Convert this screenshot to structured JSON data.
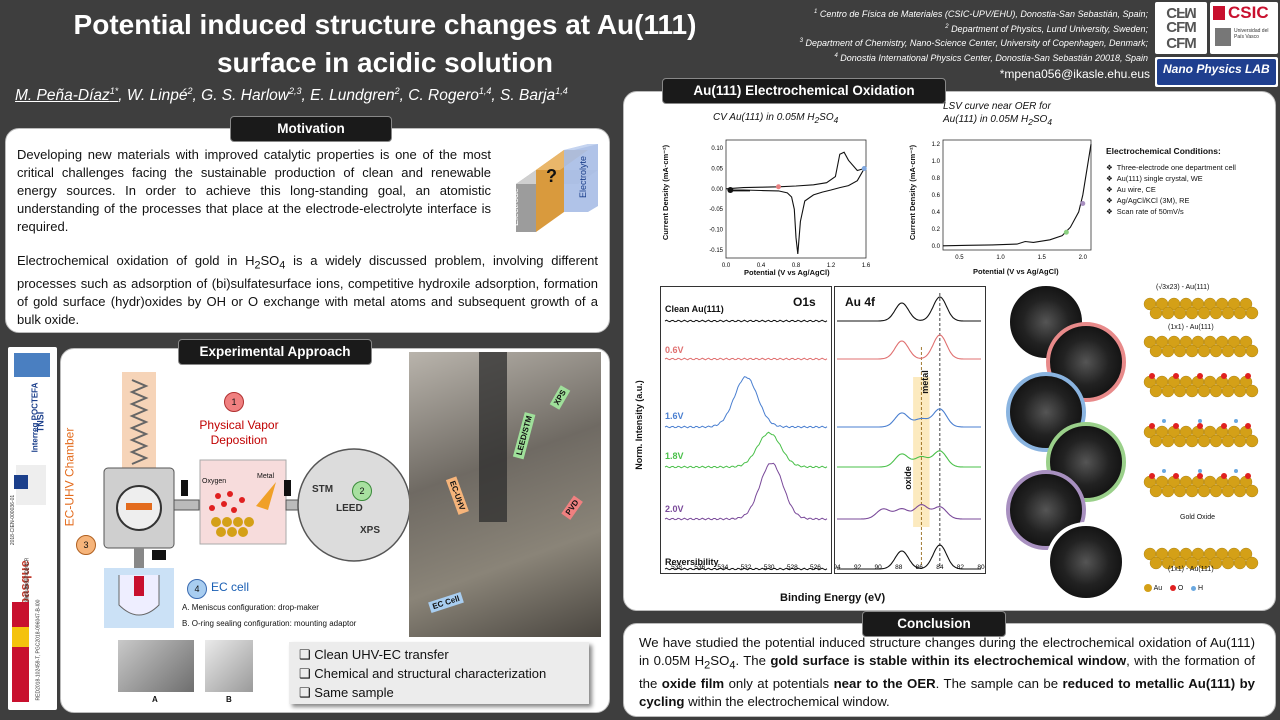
{
  "title": {
    "line1": "Potential induced structure changes at Au(111)",
    "line2": "surface in acidic solution"
  },
  "affiliations": [
    "Centro de Física de Materiales (CSIC-UPV/EHU), Donostia-San Sebastián, Spain;",
    "Department of Physics, Lund University, Sweden;",
    "Department of Chemistry, Nano-Science Center, University of Copenhagen, Denmark;",
    "Donostia International Physics Center, Donostia-San Sebastián 20018, Spain"
  ],
  "email": "*mpena056@ikasle.ehu.eus",
  "authors": {
    "a1": "M. Peña-Díaz",
    "a1s": "1*",
    "a2": "W. Linpé",
    "a2s": "2",
    "a3": "G. S. Harlow",
    "a3s": "2,3",
    "a4": "E. Lundgren",
    "a4s": "2",
    "a5": "C. Rogero",
    "a5s": "1,4",
    "a6": "S. Barja",
    "a6s": "1,4"
  },
  "logos": {
    "cfm": "CFM",
    "csic": "CSIC",
    "npl": "Nano Physics LAB",
    "ehu": "Universidad del País Vasco",
    "interreg": "Interreg POCTEFA",
    "tnsi": "TNSI",
    "ikerbasque": "ikerbasque",
    "ikerbasque_sub": "Basque Foundation for Science",
    "grant1": "2018-CIEN-000036-01",
    "grant2": "MAT2017-88377-C2-1-R",
    "grant3": "RED2018-102459-T, PGC2018-096047-B-I00"
  },
  "motivation": {
    "header": "Motivation",
    "p1": "Developing new materials with improved catalytic properties is one of the most critical challenges facing the sustainable production of clean and renewable energy sources. In order to achieve this long-standing goal, an atomistic understanding of the processes that place at the electrode-electrolyte interface is required.",
    "p2_a": "Electrochemical oxidation of gold in H",
    "p2_sub1": "2",
    "p2_b": "SO",
    "p2_sub2": "4",
    "p2_c": " is a widely discussed problem, involving different processes such as adsorption of (bi)sulfatesurface ions, competitive hydroxile adsorption, formation of gold surface (hydr)oxides by OH or O exchange with metal atoms and subsequent growth of a bulk oxide.",
    "cube_q": "?",
    "electrode": "Electrode",
    "electrolyte": "Electrolyte"
  },
  "experimental": {
    "header": "Experimental Approach",
    "chamber": "EC-UHV Chamber",
    "n1": "1",
    "pvd": "Physical Vapor Deposition",
    "n2": "2",
    "stm": "STM",
    "leed": "LEED",
    "xps": "XPS",
    "n3": "3",
    "n4": "4",
    "ec_cell": "EC cell",
    "cfg_a": "A. Meniscus configuration: drop-maker",
    "cfg_b": "B. O-ring sealing configuration: mounting adaptor",
    "oxygen": "Oxygen",
    "metal": "Metal",
    "photo_a": "A",
    "photo_b": "B",
    "photo_labels": {
      "xps": "XPS",
      "leed_stm": "LEED/STM",
      "ec_uhv": "EC-UHV",
      "pvd": "PVD",
      "ec_cell": "EC Cell"
    },
    "checks": [
      "Clean UHV-EC transfer",
      "Chemical and structural characterization",
      "Same sample"
    ]
  },
  "oxidation": {
    "header": "Au(111) Electrochemical Oxidation",
    "cv_title": "CV Au(111) in 0.05M H",
    "cv_title_sub": "2",
    "cv_title_b": "SO",
    "cv_title_sub2": "4",
    "lsv_title1": "LSV curve near OER  for",
    "lsv_title2a": "Au(111) in 0.05M H",
    "lsv_title2_sub": "2",
    "lsv_title2b": "SO",
    "lsv_title2_sub2": "4",
    "cv_ylabel": "Current Density (mA·cm⁻²)",
    "cv_xlabel": "Potential (V vs Ag/AgCl)",
    "lsv_ylabel": "Current Density (mA·cm⁻²)",
    "lsv_xlabel": "Potential (V vs Ag/AgCl)",
    "cond_title": "Electrochemical Conditions:",
    "conditions": [
      "Three-electrode   one department   cell",
      "Au(111) single crystal, WE",
      "Au wire,  CE",
      "Ag/AgCl/KCl  (3M), RE",
      "Scan rate of 50mV/s"
    ],
    "xps_o1s": "O1s",
    "xps_au4f": "Au 4f",
    "xps_ylabel": "Norm. Intensity (a.u.)",
    "xps_xlabel": "Binding Energy (eV)",
    "spectra_labels": [
      "Clean Au(111)",
      "0.6V",
      "1.6V",
      "1.8V",
      "2.0V",
      "Reversibility"
    ],
    "metal": "metal",
    "oxide": "oxide",
    "models": [
      "(√3x23) - Au(111)",
      "(1x1) - Au(111)",
      "Gold Oxide",
      "(1x1) - Au(111)"
    ],
    "legend": {
      "au": "Au",
      "o": "O",
      "h": "H"
    }
  },
  "conclusion": {
    "header": "Conclusion",
    "t1": "We have studied the potential induced structure changes during the electrochemical oxidation of Au(111) in 0.05M H",
    "t1_sub": "2",
    "t1_b": "SO",
    "t1_sub2": "4",
    "t1_c": ". The ",
    "b1": "gold surface is stable within its electrochemical window",
    "t2": ", with the formation of the ",
    "b2": "oxide film",
    "t3": " only at potentials ",
    "b3": "near to the OER",
    "t4": ". The sample can be ",
    "b4": "reduced to metallic Au(111) by cycling",
    "t5": " within the electrochemical window."
  },
  "chart_data": [
    {
      "type": "line",
      "title": "CV Au(111) in 0.05M H2SO4",
      "xlabel": "Potential (V vs Ag/AgCl)",
      "ylabel": "Current Density (mA·cm⁻²)",
      "xlim": [
        0.0,
        1.6
      ],
      "ylim": [
        -0.17,
        0.12
      ],
      "xticks": [
        0.0,
        0.4,
        0.8,
        1.2,
        1.6
      ],
      "yticks": [
        0.1,
        0.05,
        0.0,
        -0.05,
        -0.1,
        -0.15
      ],
      "x": [
        0.0,
        0.2,
        0.4,
        0.6,
        0.8,
        1.0,
        1.15,
        1.25,
        1.3,
        1.35,
        1.4,
        1.5,
        1.58,
        1.5,
        1.4,
        1.3,
        1.2,
        1.1,
        1.0,
        0.9,
        0.85,
        0.82,
        0.8,
        0.78,
        0.75,
        0.7,
        0.6,
        0.4,
        0.2,
        0.05
      ],
      "y": [
        0.0,
        0.003,
        0.004,
        0.005,
        0.007,
        0.01,
        0.015,
        0.03,
        0.085,
        0.09,
        0.07,
        0.045,
        0.05,
        0.02,
        0.008,
        0.003,
        -0.003,
        -0.008,
        -0.015,
        -0.03,
        -0.08,
        -0.16,
        -0.12,
        -0.05,
        -0.02,
        -0.01,
        -0.005,
        -0.004,
        -0.003,
        -0.003
      ]
    },
    {
      "type": "line",
      "title": "LSV curve near OER for Au(111) in 0.05M H2SO4",
      "xlabel": "Potential (V vs Ag/AgCl)",
      "ylabel": "Current Density (mA·cm⁻²)",
      "xlim": [
        0.3,
        2.1
      ],
      "ylim": [
        -0.05,
        1.25
      ],
      "xticks": [
        0.5,
        1.0,
        1.5,
        2.0
      ],
      "yticks": [
        1.2,
        1.0,
        0.8,
        0.6,
        0.4,
        0.2,
        0.0
      ],
      "x": [
        0.3,
        0.6,
        0.9,
        1.2,
        1.3,
        1.4,
        1.6,
        1.75,
        1.85,
        1.95,
        2.0,
        2.05,
        2.1
      ],
      "y": [
        0.0,
        0.005,
        0.01,
        0.02,
        0.05,
        0.04,
        0.07,
        0.12,
        0.22,
        0.4,
        0.6,
        0.9,
        1.2
      ]
    },
    {
      "type": "line",
      "title": "O1s",
      "xlabel": "Binding Energy (eV)",
      "xlim": [
        539,
        525
      ],
      "xticks": [
        538,
        536,
        534,
        532,
        530,
        528,
        526
      ],
      "series": [
        {
          "name": "Clean Au(111)",
          "peak": null
        },
        {
          "name": "0.6V",
          "peak": null
        },
        {
          "name": "1.6V",
          "peak": 532.0
        },
        {
          "name": "1.8V",
          "peak": 530.0
        },
        {
          "name": "2.0V",
          "peak": 529.8
        },
        {
          "name": "Reversibility",
          "peak": null
        }
      ]
    },
    {
      "type": "line",
      "title": "Au 4f",
      "xlabel": "Binding Energy (eV)",
      "xlim": [
        94,
        80
      ],
      "xticks": [
        94,
        92,
        90,
        88,
        86,
        84,
        82,
        80
      ],
      "series": [
        {
          "name": "Clean Au(111)",
          "peaks": [
            87.7,
            84.0
          ]
        },
        {
          "name": "0.6V",
          "peaks": [
            87.7,
            84.0
          ]
        },
        {
          "name": "1.6V",
          "peaks": [
            87.7,
            85.8,
            84.0
          ]
        },
        {
          "name": "1.8V",
          "peaks": [
            87.7,
            85.8,
            84.0
          ]
        },
        {
          "name": "2.0V",
          "peaks": [
            89.5,
            87.7,
            85.8,
            84.0
          ]
        },
        {
          "name": "Reversibility",
          "peaks": [
            87.7,
            84.0
          ]
        }
      ]
    }
  ]
}
